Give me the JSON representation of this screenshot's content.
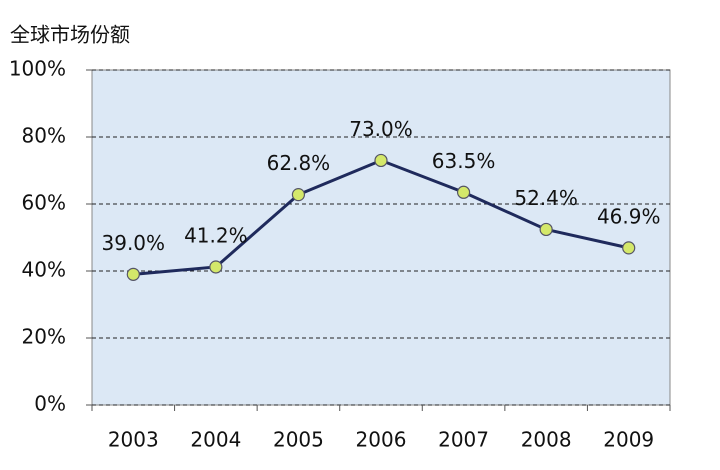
{
  "chart_data": {
    "type": "line",
    "title": "全球市场份额",
    "categories": [
      "2003",
      "2004",
      "2005",
      "2006",
      "2007",
      "2008",
      "2009"
    ],
    "values": [
      39.0,
      41.2,
      62.8,
      73.0,
      63.5,
      52.4,
      46.9
    ],
    "value_labels": [
      "39.0%",
      "41.2%",
      "62.8%",
      "73.0%",
      "63.5%",
      "52.4%",
      "46.9%"
    ],
    "color": "#1f2a5c",
    "marker_color": "#d4e86a",
    "ylim": [
      0,
      100
    ],
    "yticks": [
      {
        "value": 0,
        "label": "0%"
      },
      {
        "value": 20,
        "label": "20%"
      },
      {
        "value": 40,
        "label": "40%"
      },
      {
        "value": 60,
        "label": "60%"
      },
      {
        "value": 80,
        "label": "80%"
      },
      {
        "value": 100,
        "label": "100%"
      }
    ],
    "grid": true
  }
}
